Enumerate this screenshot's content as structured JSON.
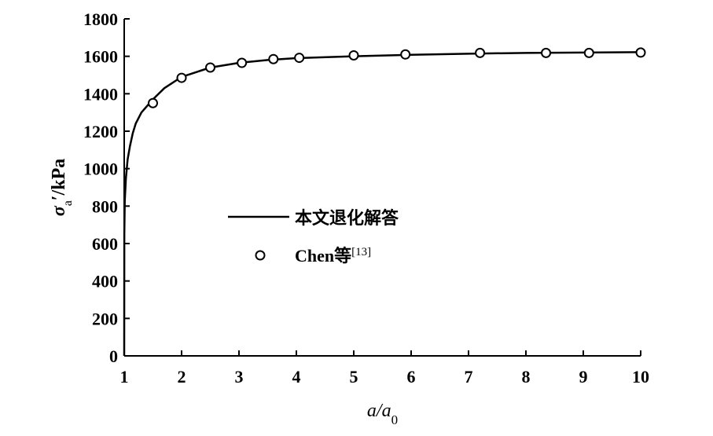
{
  "chart_data": {
    "type": "line",
    "xlabel": "a/a0",
    "ylabel": "σa′/kPa",
    "xlim": [
      1,
      10
    ],
    "ylim": [
      0,
      1800
    ],
    "xticks": [
      1,
      2,
      3,
      4,
      5,
      6,
      7,
      8,
      9,
      10
    ],
    "yticks": [
      0,
      200,
      400,
      600,
      800,
      1000,
      1200,
      1400,
      1600,
      1800
    ],
    "grid": false,
    "legend_position": "center-left",
    "series": [
      {
        "name": "本文退化解答",
        "style": "solid-line",
        "color": "#000000",
        "x": [
          1.0,
          1.002,
          1.01,
          1.03,
          1.06,
          1.1,
          1.15,
          1.2,
          1.3,
          1.4,
          1.5,
          1.7,
          2.0,
          2.5,
          3.0,
          3.5,
          4.0,
          5.0,
          6.0,
          7.0,
          8.0,
          9.0,
          10.0
        ],
        "y": [
          0,
          650,
          830,
          950,
          1050,
          1120,
          1190,
          1240,
          1300,
          1335,
          1370,
          1430,
          1490,
          1540,
          1565,
          1580,
          1590,
          1600,
          1608,
          1614,
          1618,
          1620,
          1622
        ]
      },
      {
        "name": "Chen等",
        "name_superscript": "[13]",
        "style": "open-circle-markers",
        "color": "#000000",
        "x": [
          1.5,
          2.0,
          2.5,
          3.05,
          3.6,
          4.05,
          5.0,
          5.9,
          7.2,
          8.35,
          9.1,
          10.0
        ],
        "y": [
          1350,
          1485,
          1540,
          1565,
          1585,
          1592,
          1605,
          1610,
          1618,
          1618,
          1618,
          1620
        ]
      }
    ]
  }
}
